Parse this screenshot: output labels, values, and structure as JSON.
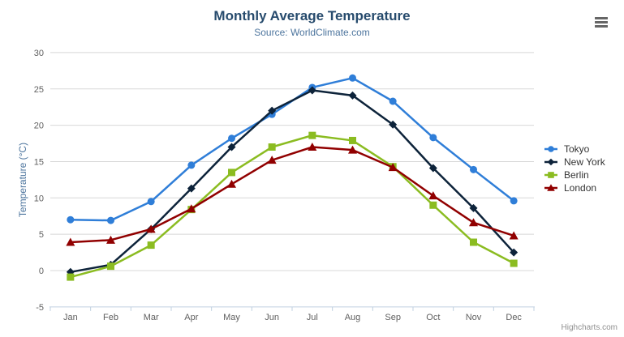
{
  "chart_data": {
    "type": "line",
    "title": "Monthly Average Temperature",
    "subtitle": "Source: WorldClimate.com",
    "xlabel": "",
    "ylabel": "Temperature (°C)",
    "categories": [
      "Jan",
      "Feb",
      "Mar",
      "Apr",
      "May",
      "Jun",
      "Jul",
      "Aug",
      "Sep",
      "Oct",
      "Nov",
      "Dec"
    ],
    "ylim": [
      -5,
      30
    ],
    "yticks": [
      -5,
      0,
      5,
      10,
      15,
      20,
      25,
      30
    ],
    "grid": true,
    "legend_position": "right",
    "series": [
      {
        "name": "Tokyo",
        "color": "#2f7ed8",
        "marker": "circle",
        "values": [
          7.0,
          6.9,
          9.5,
          14.5,
          18.2,
          21.5,
          25.2,
          26.5,
          23.3,
          18.3,
          13.9,
          9.6
        ]
      },
      {
        "name": "New York",
        "color": "#0d233a",
        "marker": "diamond",
        "values": [
          -0.2,
          0.8,
          5.7,
          11.3,
          17.0,
          22.0,
          24.8,
          24.1,
          20.1,
          14.1,
          8.6,
          2.5
        ]
      },
      {
        "name": "Berlin",
        "color": "#8bbc21",
        "marker": "square",
        "values": [
          -0.9,
          0.6,
          3.5,
          8.4,
          13.5,
          17.0,
          18.6,
          17.9,
          14.3,
          9.0,
          3.9,
          1.0
        ]
      },
      {
        "name": "London",
        "color": "#910000",
        "marker": "triangle",
        "values": [
          3.9,
          4.2,
          5.7,
          8.5,
          11.9,
          15.2,
          17.0,
          16.6,
          14.2,
          10.3,
          6.6,
          4.8
        ]
      }
    ],
    "axis_colors": {
      "label": "#606060",
      "grid": "#d8d8d8",
      "axis_line": "#c0d0e0"
    },
    "credits": "Highcharts.com"
  }
}
